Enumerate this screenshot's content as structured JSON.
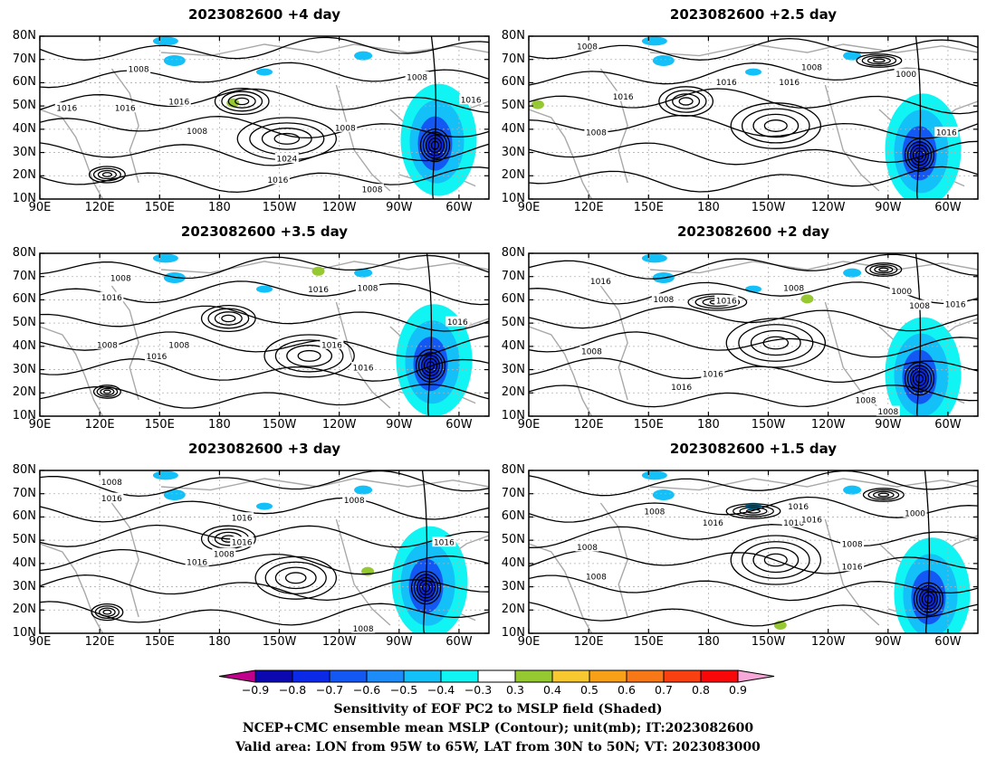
{
  "panels": [
    {
      "title": "2023082600  +4 day",
      "lows": [
        "1008",
        "1016",
        "1016",
        "1008",
        "1008",
        "1008",
        "1024",
        "1016",
        "1008",
        "1016",
        "1016"
      ]
    },
    {
      "title": "2023082600  +2.5 day",
      "lows": [
        "1008",
        "1016",
        "1016",
        "1008",
        "1008",
        "1000",
        "1016",
        "1016"
      ]
    },
    {
      "title": "2023082600  +3.5 day",
      "lows": [
        "1008",
        "1016",
        "1016",
        "1008",
        "1008",
        "1008",
        "1016",
        "1016",
        "1016",
        "1016"
      ]
    },
    {
      "title": "2023082600  +2 day",
      "lows": [
        "1016",
        "1008",
        "1016",
        "1008",
        "1000",
        "1008",
        "1016",
        "1008",
        "1016",
        "1016",
        "1008",
        "1008"
      ]
    },
    {
      "title": "2023082600  +3 day",
      "lows": [
        "1008",
        "1016",
        "1016",
        "1016",
        "1008",
        "1016",
        "1008",
        "1016",
        "1008"
      ]
    },
    {
      "title": "2023082600  +1.5 day",
      "lows": [
        "1008",
        "1016",
        "1008",
        "1016",
        "1008",
        "1016",
        "1016",
        "1000",
        "1016",
        "1008"
      ]
    }
  ],
  "lat_labels": [
    "80N",
    "70N",
    "60N",
    "50N",
    "40N",
    "30N",
    "20N",
    "10N"
  ],
  "lon_labels": [
    "90E",
    "120E",
    "150E",
    "180",
    "150W",
    "120W",
    "90W",
    "60W"
  ],
  "colorbar": {
    "labels": [
      "-0.9",
      "-0.8",
      "-0.7",
      "-0.6",
      "-0.5",
      "-0.4",
      "-0.3",
      "0.3",
      "0.4",
      "0.5",
      "0.6",
      "0.7",
      "0.8",
      "0.9"
    ],
    "colors": [
      "#c0008a",
      "#0c08b0",
      "#0a2ae8",
      "#1458f4",
      "#1e8cf8",
      "#14c0f8",
      "#10f4f4",
      "#ffffff",
      "#96c832",
      "#f8c830",
      "#f8a018",
      "#f87818",
      "#f84010",
      "#f80808",
      "#f8a8d8"
    ]
  },
  "captions": {
    "line1": "Sensitivity of EOF PC2 to MSLP field (Shaded)",
    "line2": "NCEP+CMC ensemble mean MSLP (Contour); unit(mb); IT:2023082600",
    "line3": "Valid area: LON from 95W to 65W, LAT from 30N to 50N; VT: 2023083000"
  }
}
